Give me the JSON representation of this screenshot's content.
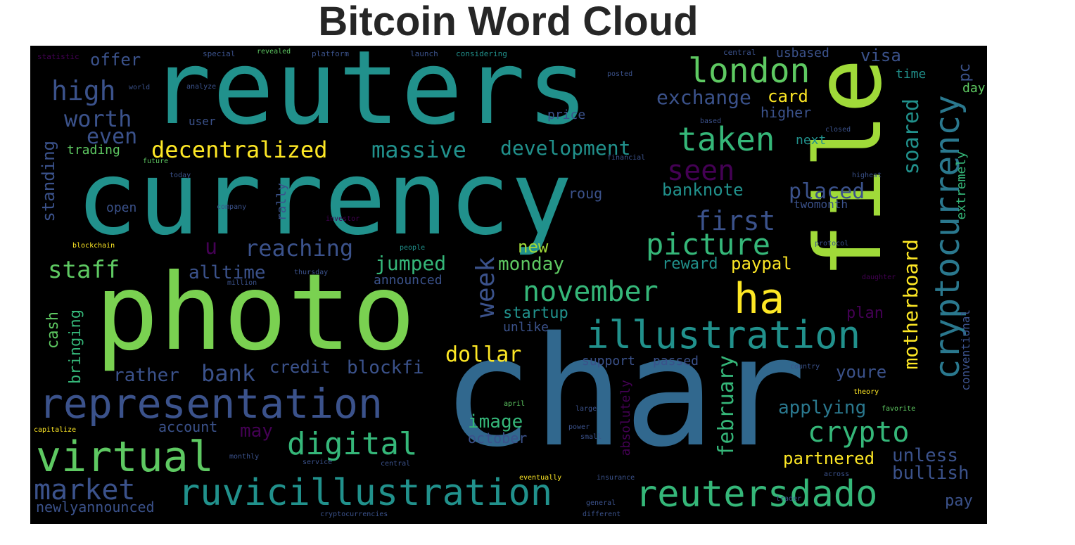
{
  "title": "Bitcoin Word Cloud",
  "colors": {
    "background": "#000000",
    "palette": [
      "#440154",
      "#3b528b",
      "#21918c",
      "#5ec962",
      "#fde725"
    ]
  },
  "words": {
    "reuters": "reuters",
    "currency": "currency",
    "photo": "photo",
    "char": "char",
    "file": "file",
    "representation": "representation",
    "virtual": "virtual",
    "ruvicillustration": "ruvicillustration",
    "reutersdado": "reutersdado",
    "illustration": "illustration",
    "cryptocurrency": "cryptocurrency",
    "london": "london",
    "taken": "taken",
    "picture": "picture",
    "november": "november",
    "ha": "ha",
    "digital": "digital",
    "crypto": "crypto",
    "market": "market",
    "decentralized": "decentralized",
    "massive": "massive",
    "development": "development",
    "seen": "seen",
    "first": "first",
    "high": "high",
    "worth": "worth",
    "even": "even",
    "staff": "staff",
    "exchange": "exchange",
    "card": "card",
    "banknote": "banknote",
    "placed": "placed",
    "soared": "soared",
    "reaching": "reaching",
    "u": "u",
    "alltime": "alltime",
    "jumped": "jumped",
    "monday": "monday",
    "new": "new",
    "week": "week",
    "motherboard": "motherboard",
    "february": "february",
    "dollar": "dollar",
    "bank": "bank",
    "rather": "rather",
    "credit": "credit",
    "blockfi": "blockfi",
    "image": "image",
    "october": "october",
    "may": "may",
    "account": "account",
    "newlyannounced": "newlyannounced",
    "applying": "applying",
    "partnered": "partnered",
    "unless": "unless",
    "bullish": "bullish",
    "pay": "pay",
    "youre": "youre",
    "plan": "plan",
    "reward": "reward",
    "paypal": "paypal",
    "visa": "visa",
    "usbased": "usbased",
    "pc": "pc",
    "time": "time",
    "day": "day",
    "higher": "higher",
    "next": "next",
    "price": "price",
    "user": "user",
    "trading": "trading",
    "offer": "offer",
    "standing": "standing",
    "open": "open",
    "cash": "cash",
    "bringing": "bringing",
    "rally": "rally",
    "startup": "startup",
    "unlike": "unlike",
    "support": "support",
    "passed": "passed",
    "absolutely": "absolutely",
    "announced": "announced",
    "twomonth": "twomonth",
    "roug": "roug",
    "extremely": "extremely",
    "conventional": "conventional",
    "statistic": "statistic",
    "special": "special",
    "revealed": "revealed",
    "platform": "platform",
    "launch": "launch",
    "considering": "considering",
    "central": "central",
    "world": "world",
    "million": "million",
    "people": "people",
    "company": "company",
    "investor": "investor",
    "blockchain": "blockchain",
    "financial": "financial",
    "apr": "april",
    "large": "large",
    "power": "power",
    "small": "small",
    "general": "general",
    "different": "different",
    "cryptocurrencies": "cryptocurrencies",
    "trader": "trader",
    "across": "across",
    "capitalize": "capitalize",
    "service": "service",
    "monthly": "monthly",
    "eventually": "eventually",
    "theory": "theory",
    "favorite": "favorite",
    "country": "country",
    "highest": "highest",
    "closed": "closed",
    "based": "based",
    "future": "future",
    "today": "today",
    "thursday": "thursday",
    "daughter": "daughter",
    "protocol": "protocol",
    "insurance": "insurance",
    "analyze": "analyze",
    "posted": "posted"
  }
}
